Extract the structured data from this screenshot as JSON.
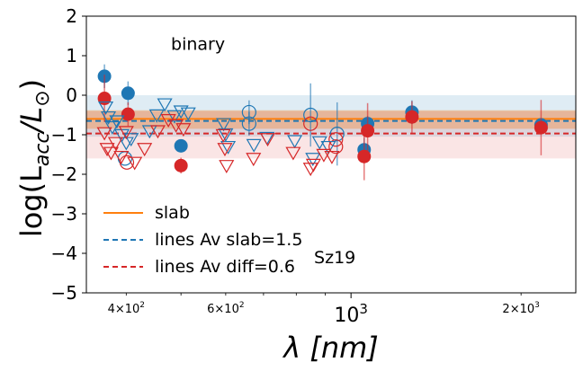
{
  "chart_data": {
    "type": "scatter",
    "title": "",
    "xlabel": "λ [nm]",
    "ylabel_prefix": "log(L",
    "ylabel_sub": "acc",
    "ylabel_mid": "/L",
    "ylabel_sun": "⊙",
    "ylabel_suffix": ")",
    "xscale": "log",
    "xlim": [
      340,
      2500
    ],
    "ylim": [
      -5,
      2
    ],
    "yticks": [
      2,
      1,
      0,
      -1,
      -2,
      -3,
      -4,
      -5
    ],
    "ytick_labels": [
      "2",
      "1",
      "0",
      "−1",
      "−2",
      "−3",
      "−4",
      "−5"
    ],
    "xticks": [
      {
        "value": 400,
        "base": "4×10",
        "exp": "2",
        "size": "minor"
      },
      {
        "value": 600,
        "base": "6×10",
        "exp": "2",
        "size": "minor"
      },
      {
        "value": 1000,
        "base": "10",
        "exp": "3",
        "size": "major"
      },
      {
        "value": 2000,
        "base": "2×10",
        "exp": "3",
        "size": "minor"
      }
    ],
    "annotations": [
      {
        "text": "binary",
        "x": 480,
        "y": 1.15
      },
      {
        "text": "Sz19",
        "x": 860,
        "y": -4.25
      }
    ],
    "colors": {
      "slab": "#ff7f0e",
      "blue": "#1f77b4",
      "red": "#d62728"
    },
    "bands": [
      {
        "series": "lines Av slab=1.5",
        "y0": -1.05,
        "y1": 0.0,
        "color": "#1f77b4",
        "opacity": 0.14
      },
      {
        "series": "slab",
        "y0": -0.85,
        "y1": -0.38,
        "color": "#ff7f0e",
        "opacity": 0.32
      },
      {
        "series": "lines Av diff=0.6",
        "y0": -1.6,
        "y1": -0.4,
        "color": "#d62728",
        "opacity": 0.12
      }
    ],
    "hlines": [
      {
        "name": "slab",
        "y": -0.6,
        "color": "#ff7f0e",
        "dash": "none"
      },
      {
        "name": "lines Av slab=1.5",
        "y": -0.65,
        "color": "#1f77b4",
        "dash": "6,4"
      },
      {
        "name": "lines Av diff=0.6",
        "y": -0.97,
        "color": "#d62728",
        "dash": "6,4"
      }
    ],
    "legend": {
      "position": "lower-left",
      "entries": [
        {
          "label": "slab",
          "color": "#ff7f0e",
          "dash": "none"
        },
        {
          "label": "lines Av slab=1.5",
          "color": "#1f77b4",
          "dash": "dashed"
        },
        {
          "label": "lines Av diff=0.6",
          "color": "#d62728",
          "dash": "dashed"
        }
      ]
    },
    "series": [
      {
        "name": "slab (filled, blue)",
        "marker": "filled-circle",
        "color": "#1f77b4",
        "points": [
          {
            "x": 366,
            "y": 0.48,
            "err": 0.3
          },
          {
            "x": 403,
            "y": 0.05,
            "err": 0.3
          },
          {
            "x": 500,
            "y": -1.28,
            "err": 0.1
          },
          {
            "x": 1070,
            "y": -0.72,
            "err": 0.2
          },
          {
            "x": 1055,
            "y": -1.38,
            "err": 0.3
          },
          {
            "x": 1282,
            "y": -0.43,
            "err": 0.3
          },
          {
            "x": 2170,
            "y": -0.75,
            "err": 0.1
          }
        ]
      },
      {
        "name": "slab (filled, red)",
        "marker": "filled-circle",
        "color": "#d62728",
        "points": [
          {
            "x": 366,
            "y": -0.08,
            "err": 0.6
          },
          {
            "x": 403,
            "y": -0.48,
            "err": 0.3
          },
          {
            "x": 500,
            "y": -1.78,
            "err": 0.2
          },
          {
            "x": 1070,
            "y": -0.9,
            "err": 0.7
          },
          {
            "x": 1055,
            "y": -1.55,
            "err": 0.6
          },
          {
            "x": 1282,
            "y": -0.55,
            "err": 0.4
          },
          {
            "x": 2170,
            "y": -0.82,
            "err": 0.7
          }
        ]
      },
      {
        "name": "lines (open circle, blue)",
        "marker": "open-circle",
        "color": "#1f77b4",
        "points": [
          {
            "x": 398,
            "y": -1.6
          },
          {
            "x": 660,
            "y": -0.43,
            "err": 0.3
          },
          {
            "x": 660,
            "y": -0.72,
            "err": 0.3
          },
          {
            "x": 848,
            "y": -0.5,
            "err": 0.8
          },
          {
            "x": 945,
            "y": -0.98,
            "err": 0.8
          }
        ]
      },
      {
        "name": "lines (open circle, red)",
        "marker": "open-circle",
        "color": "#d62728",
        "points": [
          {
            "x": 401,
            "y": -1.7
          },
          {
            "x": 848,
            "y": -0.72
          },
          {
            "x": 940,
            "y": -1.12
          },
          {
            "x": 940,
            "y": -1.3
          }
        ]
      },
      {
        "name": "lines (open triangle, blue)",
        "marker": "open-triangle-down",
        "color": "#1f77b4",
        "points": [
          {
            "x": 368,
            "y": -0.3
          },
          {
            "x": 372,
            "y": -0.55
          },
          {
            "x": 378,
            "y": -0.8
          },
          {
            "x": 385,
            "y": -0.65
          },
          {
            "x": 393,
            "y": -1.0
          },
          {
            "x": 400,
            "y": -1.2
          },
          {
            "x": 408,
            "y": -1.1
          },
          {
            "x": 440,
            "y": -0.9
          },
          {
            "x": 453,
            "y": -0.5
          },
          {
            "x": 468,
            "y": -0.22
          },
          {
            "x": 487,
            "y": -0.52
          },
          {
            "x": 500,
            "y": -0.4
          },
          {
            "x": 515,
            "y": -0.45
          },
          {
            "x": 595,
            "y": -0.72
          },
          {
            "x": 600,
            "y": -0.98
          },
          {
            "x": 606,
            "y": -1.3
          },
          {
            "x": 673,
            "y": -1.25
          },
          {
            "x": 710,
            "y": -1.07
          },
          {
            "x": 795,
            "y": -1.15
          },
          {
            "x": 856,
            "y": -1.6
          },
          {
            "x": 880,
            "y": -1.18
          },
          {
            "x": 912,
            "y": -1.3
          }
        ]
      },
      {
        "name": "lines (open triangle, red)",
        "marker": "open-triangle-down",
        "color": "#d62728",
        "points": [
          {
            "x": 366,
            "y": -0.95
          },
          {
            "x": 370,
            "y": -1.35
          },
          {
            "x": 376,
            "y": -1.45
          },
          {
            "x": 383,
            "y": -1.2
          },
          {
            "x": 392,
            "y": -1.55
          },
          {
            "x": 400,
            "y": -0.92
          },
          {
            "x": 414,
            "y": -1.7
          },
          {
            "x": 431,
            "y": -1.35
          },
          {
            "x": 455,
            "y": -0.9
          },
          {
            "x": 475,
            "y": -0.62
          },
          {
            "x": 490,
            "y": -0.75
          },
          {
            "x": 505,
            "y": -0.85
          },
          {
            "x": 594,
            "y": -1.0
          },
          {
            "x": 598,
            "y": -1.35
          },
          {
            "x": 602,
            "y": -1.78
          },
          {
            "x": 672,
            "y": -1.6
          },
          {
            "x": 712,
            "y": -1.1
          },
          {
            "x": 790,
            "y": -1.45
          },
          {
            "x": 848,
            "y": -1.85
          },
          {
            "x": 858,
            "y": -1.75
          },
          {
            "x": 895,
            "y": -1.5
          },
          {
            "x": 925,
            "y": -1.55
          }
        ]
      }
    ]
  }
}
